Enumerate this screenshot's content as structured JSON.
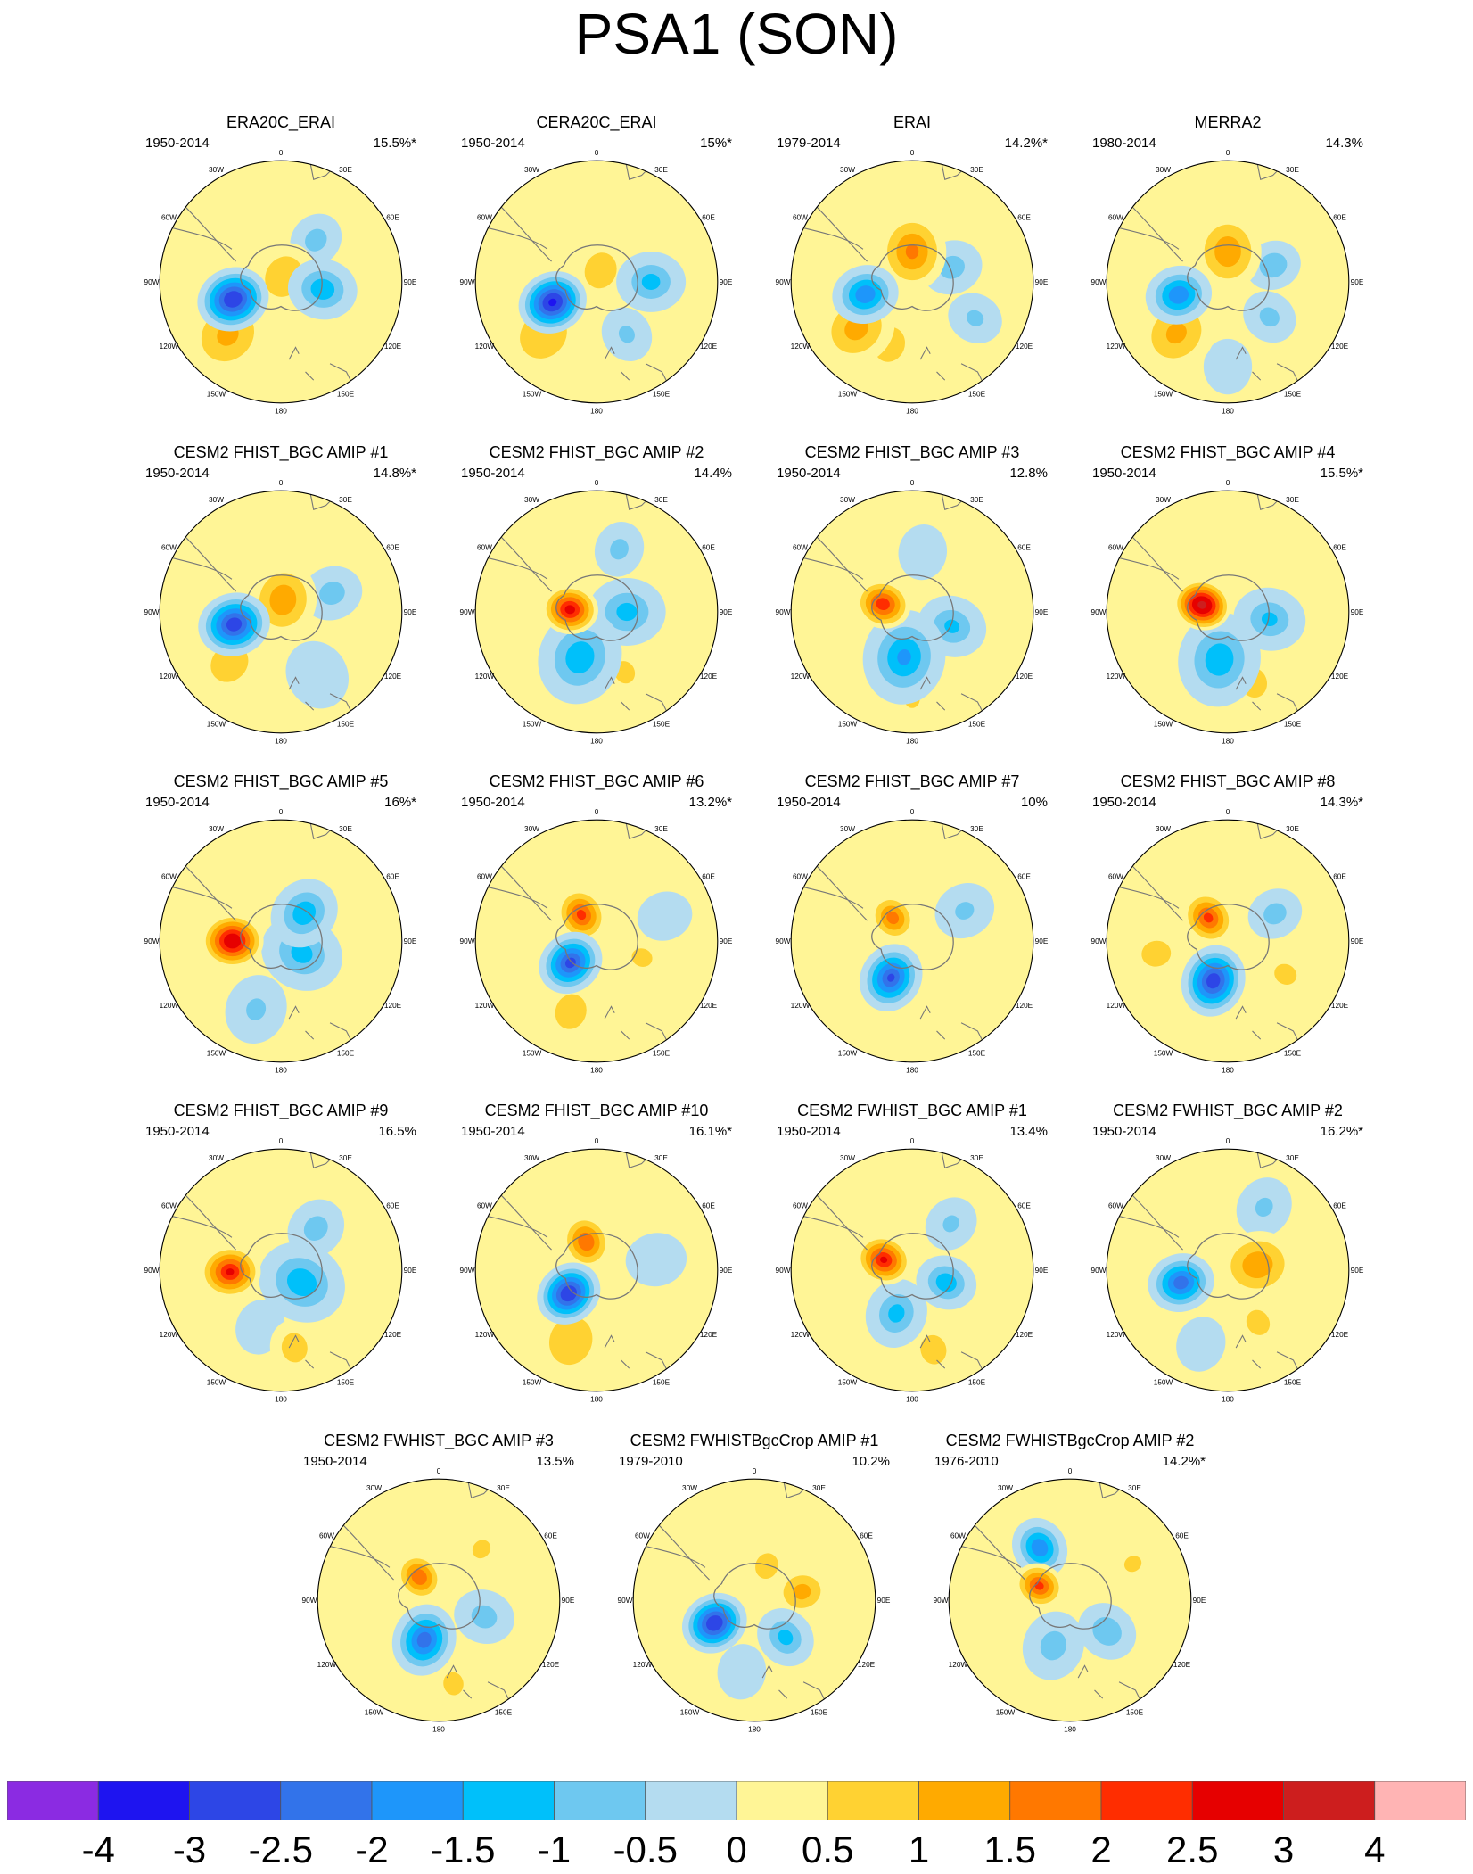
{
  "title": "PSA1 (SON)",
  "panels": [
    {
      "title": "ERA20C_ERAI",
      "years": "1950-2014",
      "variance": "15.5%*"
    },
    {
      "title": "CERA20C_ERAI",
      "years": "1950-2014",
      "variance": "15%*"
    },
    {
      "title": "ERAI",
      "years": "1979-2014",
      "variance": "14.2%*"
    },
    {
      "title": "MERRA2",
      "years": "1980-2014",
      "variance": "14.3%"
    },
    {
      "title": "CESM2 FHIST_BGC AMIP #1",
      "years": "1950-2014",
      "variance": "14.8%*"
    },
    {
      "title": "CESM2 FHIST_BGC AMIP #2",
      "years": "1950-2014",
      "variance": "14.4%"
    },
    {
      "title": "CESM2 FHIST_BGC AMIP #3",
      "years": "1950-2014",
      "variance": "12.8%"
    },
    {
      "title": "CESM2 FHIST_BGC AMIP #4",
      "years": "1950-2014",
      "variance": "15.5%*"
    },
    {
      "title": "CESM2 FHIST_BGC AMIP #5",
      "years": "1950-2014",
      "variance": "16%*"
    },
    {
      "title": "CESM2 FHIST_BGC AMIP #6",
      "years": "1950-2014",
      "variance": "13.2%*"
    },
    {
      "title": "CESM2 FHIST_BGC AMIP #7",
      "years": "1950-2014",
      "variance": "10%"
    },
    {
      "title": "CESM2 FHIST_BGC AMIP #8",
      "years": "1950-2014",
      "variance": "14.3%*"
    },
    {
      "title": "CESM2 FHIST_BGC AMIP #9",
      "years": "1950-2014",
      "variance": "16.5%"
    },
    {
      "title": "CESM2 FHIST_BGC AMIP #10",
      "years": "1950-2014",
      "variance": "16.1%*"
    },
    {
      "title": "CESM2 FWHIST_BGC AMIP #1",
      "years": "1950-2014",
      "variance": "13.4%"
    },
    {
      "title": "CESM2 FWHIST_BGC AMIP #2",
      "years": "1950-2014",
      "variance": "16.2%*"
    },
    {
      "title": "CESM2 FWHIST_BGC AMIP #3",
      "years": "1950-2014",
      "variance": "13.5%"
    },
    {
      "title": "CESM2 FWHISTBgcCrop AMIP #1",
      "years": "1979-2010",
      "variance": "10.2%"
    },
    {
      "title": "CESM2 FWHISTBgcCrop AMIP #2",
      "years": "1976-2010",
      "variance": "14.2%*"
    }
  ],
  "longitude_labels": [
    "0",
    "30E",
    "60E",
    "90E",
    "120E",
    "150E",
    "180",
    "150W",
    "120W",
    "90W",
    "60W",
    "30W"
  ],
  "colorbar": {
    "labels": [
      "-4",
      "-3",
      "-2.5",
      "-2",
      "-1.5",
      "-1",
      "-0.5",
      "0",
      "0.5",
      "1",
      "1.5",
      "2",
      "2.5",
      "3",
      "4"
    ],
    "colors": [
      "#8b2be2",
      "#1e14f0",
      "#2d46e6",
      "#3273ea",
      "#1e96fa",
      "#00c0fa",
      "#6ec8f0",
      "#b4dcf0",
      "#fff596",
      "#ffd232",
      "#ffaa00",
      "#ff7800",
      "#ff2d00",
      "#e60000",
      "#cd1e1e",
      "#ffb4b4"
    ]
  }
}
